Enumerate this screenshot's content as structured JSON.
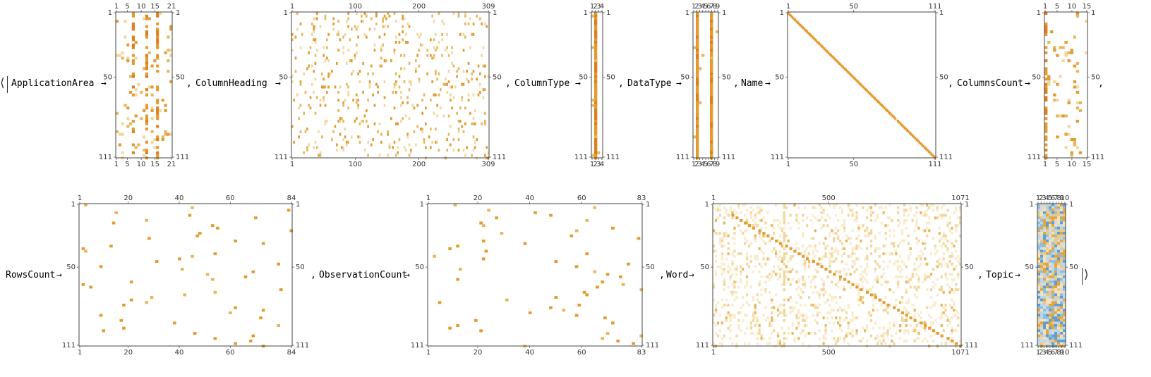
{
  "brackets": {
    "open": "⟨",
    "close": "⟩"
  },
  "colors": {
    "frame": "#444444",
    "density": [
      "#f9ebcb",
      "#f2d69c",
      "#e8b65b",
      "#e49a2f",
      "#df7e1a"
    ],
    "topic": [
      "#f4e2bd",
      "#e9c98a",
      "#e4a63c",
      "#d9d9d9",
      "#b9d6ea",
      "#8fbfe0",
      "#5b9fd4"
    ]
  },
  "entries": [
    {
      "key": "ApplicationArea",
      "arrow": "→",
      "sep": "",
      "trail": ",",
      "rows": 111,
      "cols": 21,
      "y_ticks": [
        "1",
        "50",
        "111"
      ],
      "x_ticks": [
        "1",
        "5",
        "10",
        "15",
        "21"
      ],
      "pattern": "sparse",
      "density": 0.09,
      "stripes": [
        6,
        11,
        15
      ]
    },
    {
      "key": "ColumnHeading",
      "arrow": "→",
      "sep": ",",
      "rows": 111,
      "cols": 309,
      "y_ticks": [
        "1",
        "50",
        "111"
      ],
      "x_ticks": [
        "1",
        "100",
        "200",
        "309"
      ],
      "pattern": "sparse",
      "density": 0.07
    },
    {
      "key": "ColumnType",
      "arrow": "→",
      "sep": ",",
      "rows": 111,
      "cols": 4,
      "y_ticks": [
        "1",
        "50",
        "111"
      ],
      "x_ticks": [
        "1",
        "2",
        "3",
        "4"
      ],
      "pattern": "stripe",
      "stripes": [
        1
      ]
    },
    {
      "key": "DataType",
      "arrow": "→",
      "sep": ",",
      "rows": 111,
      "cols": 9,
      "y_ticks": [
        "1",
        "50",
        "111"
      ],
      "x_ticks": [
        "1",
        "2",
        "3",
        "4",
        "5",
        "6",
        "7",
        "8",
        "9"
      ],
      "pattern": "stripe",
      "stripes": [
        1,
        6
      ]
    },
    {
      "key": "Name",
      "arrow": "→",
      "sep": ",",
      "rows": 111,
      "cols": 111,
      "y_ticks": [
        "1",
        "50",
        "111"
      ],
      "x_ticks": [
        "1",
        "50",
        "111"
      ],
      "pattern": "diagonal"
    },
    {
      "key": "ColumnsCount",
      "arrow": "→",
      "sep": ",",
      "rows": 111,
      "cols": 15,
      "y_ticks": [
        "1",
        "50",
        "111"
      ],
      "x_ticks": [
        "1",
        "5",
        "10",
        "15"
      ],
      "pattern": "sparse",
      "density": 0.06,
      "stripes": [
        0
      ]
    },
    {
      "key": "RowsCount",
      "arrow": "→",
      "sep": "",
      "rows": 111,
      "cols": 84,
      "y_ticks": [
        "1",
        "50",
        "111"
      ],
      "x_ticks": [
        "1",
        "20",
        "40",
        "60",
        "84"
      ],
      "pattern": "permutation"
    },
    {
      "key": "ObservationCount",
      "arrow": "→",
      "sep": ",",
      "rows": 111,
      "cols": 83,
      "y_ticks": [
        "1",
        "50",
        "111"
      ],
      "x_ticks": [
        "1",
        "20",
        "40",
        "60",
        "83"
      ],
      "pattern": "permutation"
    },
    {
      "key": "Word",
      "arrow": "→",
      "sep": ",",
      "rows": 111,
      "cols": 1071,
      "y_ticks": [
        "1",
        "50",
        "111"
      ],
      "x_ticks": [
        "1",
        "500",
        "1071"
      ],
      "pattern": "wordcloud"
    },
    {
      "key": "Topic",
      "arrow": "→",
      "sep": ",",
      "rows": 111,
      "cols": 10,
      "y_ticks": [
        "1",
        "50",
        "111"
      ],
      "x_ticks": [
        "1",
        "2",
        "3",
        "4",
        "5",
        "6",
        "7",
        "8",
        "9",
        "10"
      ],
      "pattern": "dense"
    }
  ]
}
